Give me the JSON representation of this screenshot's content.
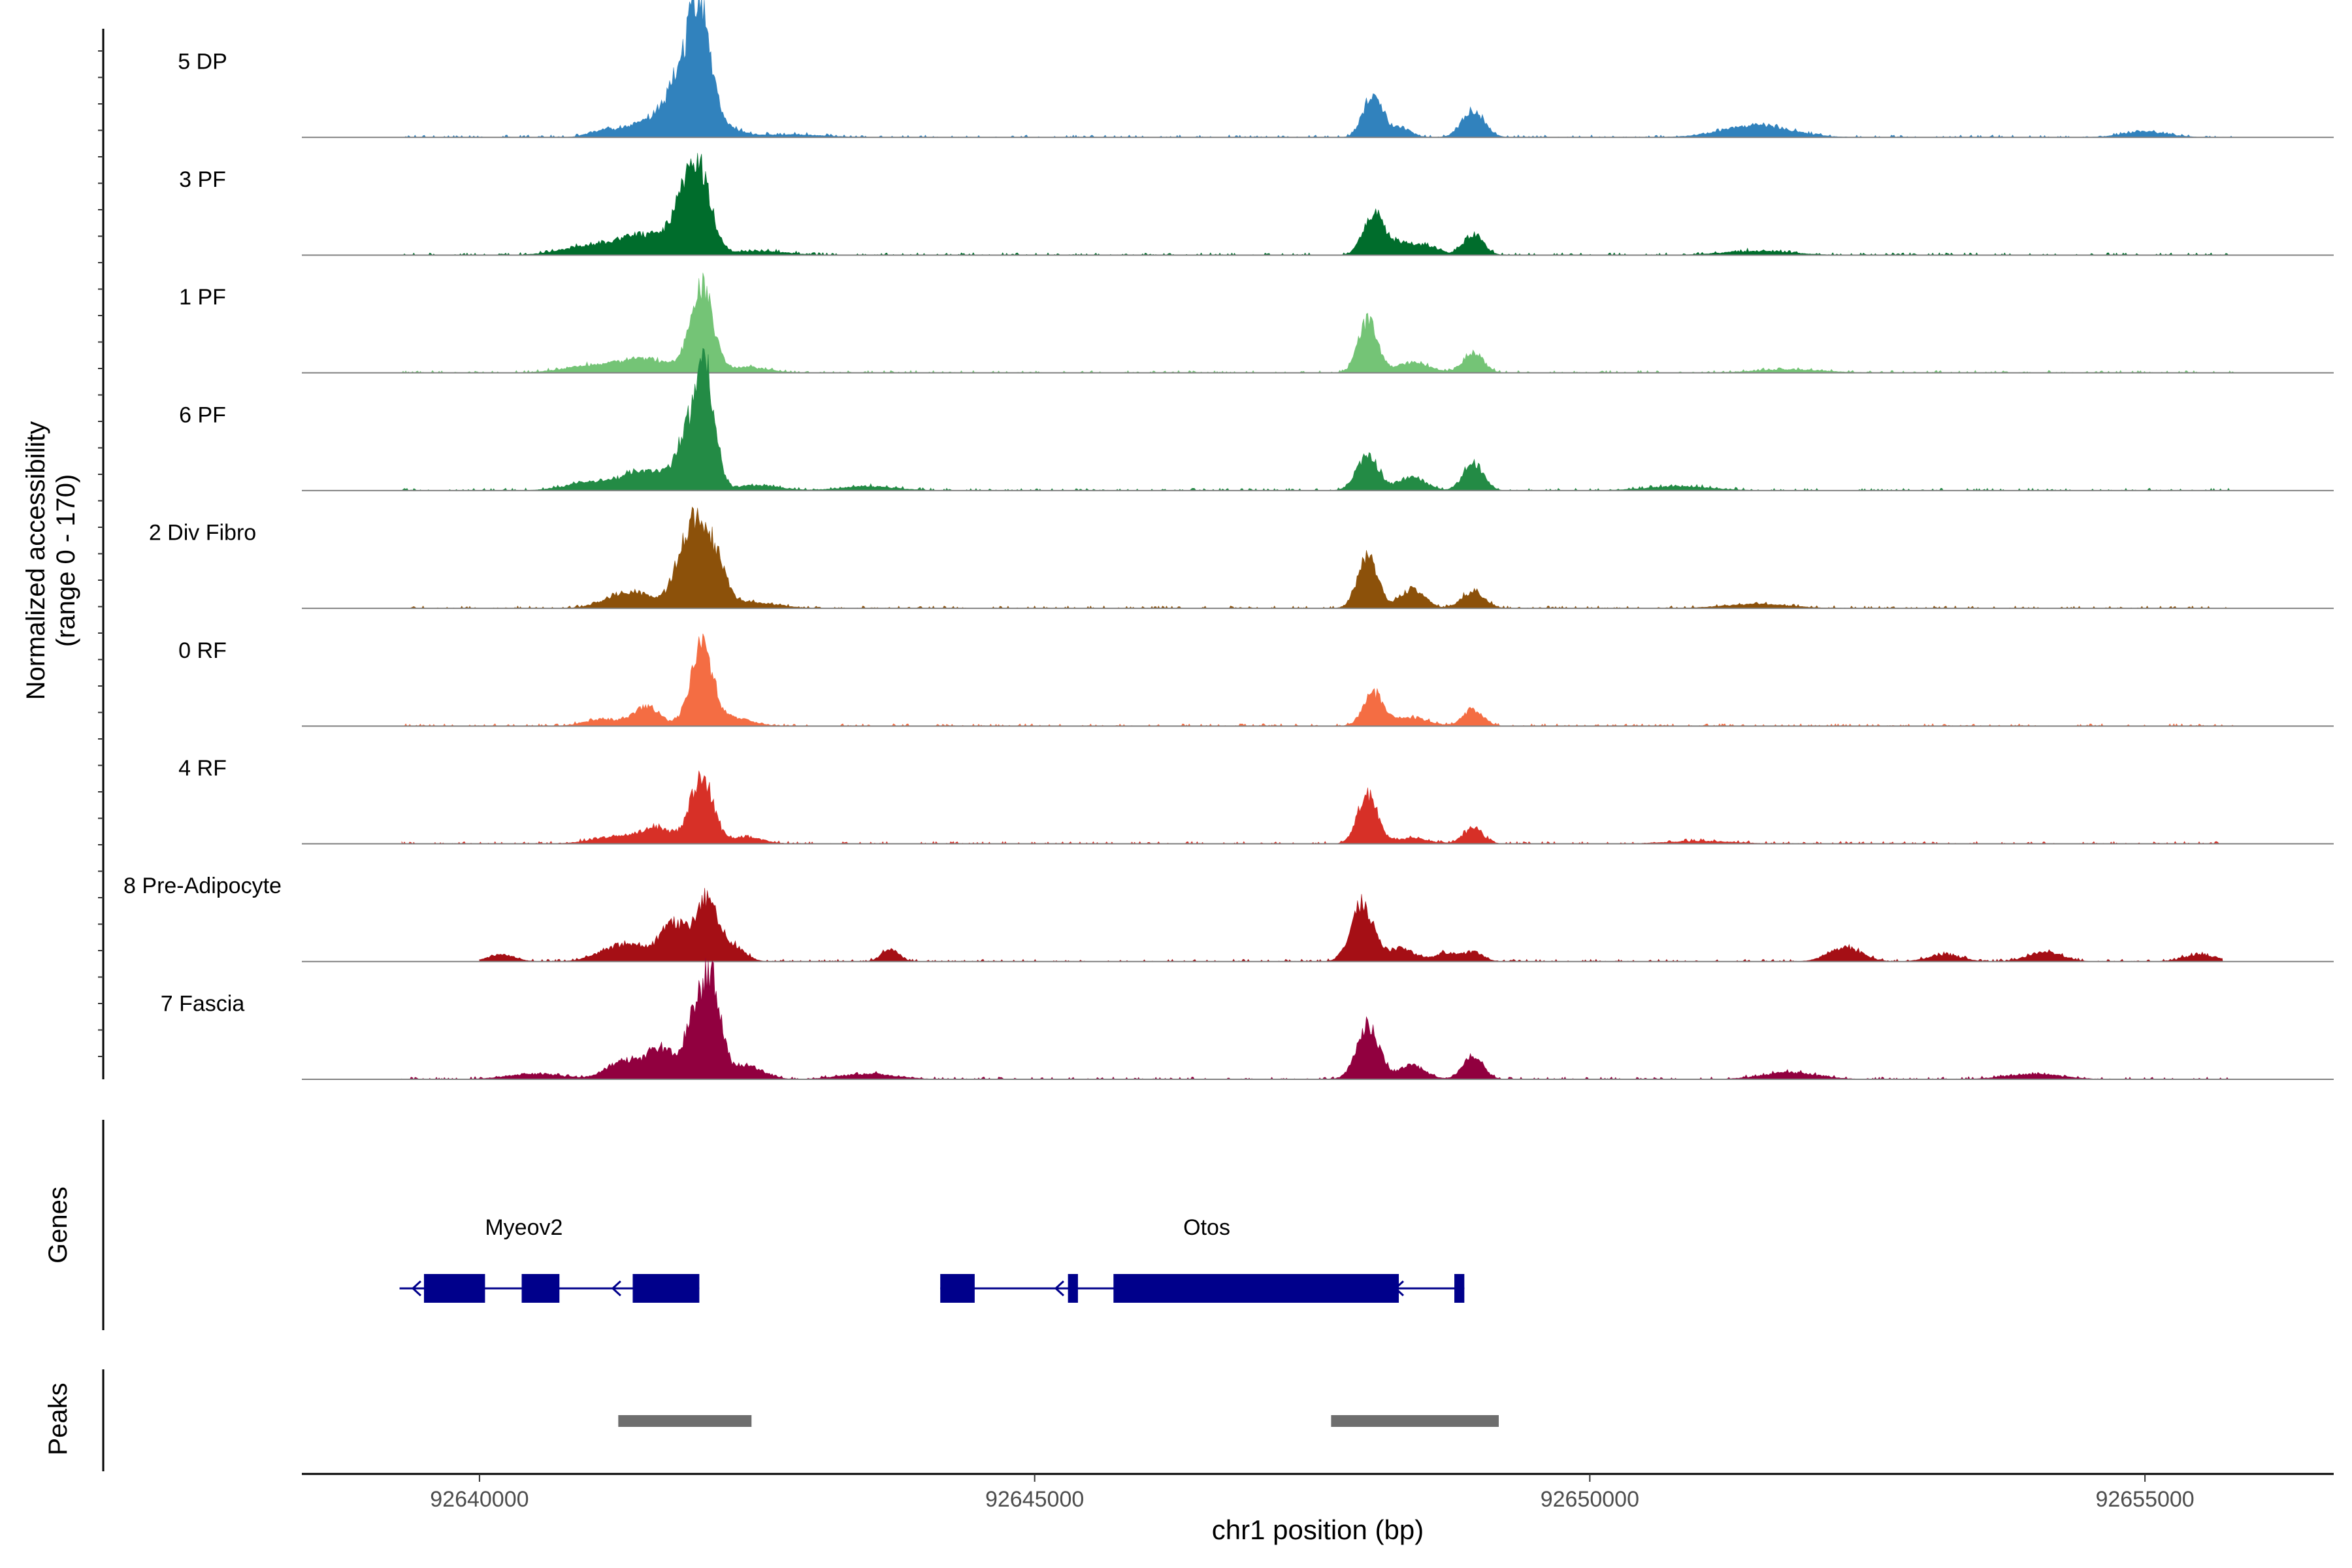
{
  "chart_data": {
    "type": "area",
    "title": "",
    "ylabel": "Normalized accessibility",
    "ylabel_range": "(range 0 - 170)",
    "xlabel": "chr1 position (bp)",
    "xlim": [
      92638400,
      92656700
    ],
    "ylim": [
      0,
      170
    ],
    "x_ticks": [
      92640000,
      92645000,
      92650000,
      92655000
    ],
    "x_tick_labels": [
      "92640000",
      "92645000",
      "92650000",
      "92655000"
    ],
    "tracks": [
      {
        "name": "5 DP",
        "color": "#3182bd",
        "peaks": [
          [
            92641100,
            10,
            120
          ],
          [
            92641400,
            16,
            130
          ],
          [
            92641650,
            30,
            120
          ],
          [
            92641850,
            95,
            110
          ],
          [
            92642000,
            150,
            90
          ],
          [
            92642150,
            18,
            160
          ],
          [
            92642800,
            4,
            300
          ],
          [
            92648050,
            65,
            85
          ],
          [
            92648300,
            14,
            90
          ],
          [
            92648950,
            40,
            100
          ],
          [
            92651500,
            18,
            300
          ],
          [
            92655000,
            8,
            200
          ]
        ],
        "range": [
          92639300,
          92655800
        ]
      },
      {
        "name": "3 PF",
        "color": "#006d2c",
        "peaks": [
          [
            92641000,
            14,
            250
          ],
          [
            92641500,
            28,
            220
          ],
          [
            92641850,
            70,
            110
          ],
          [
            92642000,
            95,
            100
          ],
          [
            92642500,
            6,
            250
          ],
          [
            92648050,
            60,
            90
          ],
          [
            92648300,
            18,
            120
          ],
          [
            92648550,
            12,
            100
          ],
          [
            92648950,
            30,
            90
          ],
          [
            92651500,
            6,
            300
          ]
        ],
        "range": [
          92639300,
          92655800
        ]
      },
      {
        "name": "1 PF",
        "color": "#74c476",
        "peaks": [
          [
            92641000,
            10,
            250
          ],
          [
            92641500,
            20,
            220
          ],
          [
            92642000,
            125,
            100
          ],
          [
            92642400,
            8,
            200
          ],
          [
            92648000,
            75,
            85
          ],
          [
            92648400,
            15,
            150
          ],
          [
            92648950,
            30,
            90
          ],
          [
            92651800,
            5,
            300
          ]
        ],
        "range": [
          92639300,
          92655800
        ]
      },
      {
        "name": "6 PF",
        "color": "#238b45",
        "peaks": [
          [
            92641000,
            12,
            220
          ],
          [
            92641500,
            28,
            200
          ],
          [
            92641900,
            90,
            110
          ],
          [
            92642050,
            140,
            80
          ],
          [
            92642500,
            8,
            200
          ],
          [
            92643500,
            6,
            250
          ],
          [
            92648000,
            50,
            100
          ],
          [
            92648400,
            20,
            120
          ],
          [
            92648950,
            40,
            90
          ],
          [
            92650800,
            6,
            300
          ]
        ],
        "range": [
          92639300,
          92655800
        ]
      },
      {
        "name": "2 Div Fibro",
        "color": "#8c510a",
        "peaks": [
          [
            92641350,
            25,
            200
          ],
          [
            92641900,
            110,
            120
          ],
          [
            92642100,
            75,
            110
          ],
          [
            92642500,
            8,
            200
          ],
          [
            92648000,
            75,
            90
          ],
          [
            92648400,
            28,
            110
          ],
          [
            92648950,
            25,
            100
          ],
          [
            92651500,
            6,
            300
          ]
        ],
        "range": [
          92639300,
          92655800
        ]
      },
      {
        "name": "0 RF",
        "color": "#f46d43",
        "peaks": [
          [
            92641100,
            10,
            150
          ],
          [
            92641500,
            28,
            120
          ],
          [
            92642000,
            115,
            100
          ],
          [
            92642300,
            12,
            150
          ],
          [
            92648050,
            48,
            90
          ],
          [
            92648400,
            12,
            150
          ],
          [
            92648950,
            24,
            90
          ]
        ],
        "range": [
          92639300,
          92655800
        ]
      },
      {
        "name": "4 RF",
        "color": "#d73027",
        "peaks": [
          [
            92641200,
            10,
            200
          ],
          [
            92641600,
            22,
            150
          ],
          [
            92642000,
            100,
            100
          ],
          [
            92642400,
            10,
            150
          ],
          [
            92648000,
            70,
            90
          ],
          [
            92648400,
            8,
            150
          ],
          [
            92648950,
            22,
            90
          ],
          [
            92651000,
            4,
            300
          ]
        ],
        "range": [
          92639300,
          92655800
        ]
      },
      {
        "name": "8 Pre-Adipocyte",
        "color": "#a50f15",
        "peaks": [
          [
            92640200,
            10,
            120
          ],
          [
            92641300,
            25,
            200
          ],
          [
            92641750,
            55,
            120
          ],
          [
            92642050,
            90,
            100
          ],
          [
            92642300,
            20,
            100
          ],
          [
            92643700,
            18,
            80
          ],
          [
            92647950,
            85,
            100
          ],
          [
            92648300,
            20,
            120
          ],
          [
            92648700,
            12,
            100
          ],
          [
            92648950,
            14,
            90
          ],
          [
            92652300,
            20,
            150
          ],
          [
            92653200,
            10,
            150
          ],
          [
            92654100,
            14,
            150
          ],
          [
            92655500,
            10,
            150
          ]
        ],
        "range": [
          92640000,
          92655700
        ]
      },
      {
        "name": "7 Fascia",
        "color": "#91003f",
        "peaks": [
          [
            92640500,
            8,
            250
          ],
          [
            92641300,
            28,
            150
          ],
          [
            92641650,
            45,
            130
          ],
          [
            92641950,
            90,
            90
          ],
          [
            92642100,
            130,
            80
          ],
          [
            92642400,
            20,
            150
          ],
          [
            92643500,
            8,
            250
          ],
          [
            92648000,
            80,
            100
          ],
          [
            92648400,
            20,
            120
          ],
          [
            92648950,
            35,
            90
          ],
          [
            92651800,
            10,
            250
          ],
          [
            92654000,
            8,
            250
          ]
        ],
        "range": [
          92639300,
          92655800
        ]
      }
    ],
    "genes_label": "Genes",
    "genes": [
      {
        "name": "Myeov2",
        "strand": "-",
        "start": 92639280,
        "end": 92641980,
        "label_pos": 92640400,
        "exons": [
          [
            92639500,
            92640050
          ],
          [
            92640380,
            92640720
          ],
          [
            92641380,
            92641980
          ]
        ],
        "arrows": [
          92639400,
          92641200
        ]
      },
      {
        "name": "Otos",
        "strand": "-",
        "start": 92644150,
        "end": 92648870,
        "label_pos": 92646550,
        "exons": [
          [
            92644150,
            92644460
          ],
          [
            92645300,
            92645390
          ],
          [
            92645710,
            92648280
          ],
          [
            92648780,
            92648870
          ]
        ],
        "arrows": [
          92645190,
          92648250
        ]
      }
    ],
    "peaks_label": "Peaks",
    "peaks": [
      [
        92641250,
        92642450
      ],
      [
        92647670,
        92649180
      ]
    ]
  }
}
